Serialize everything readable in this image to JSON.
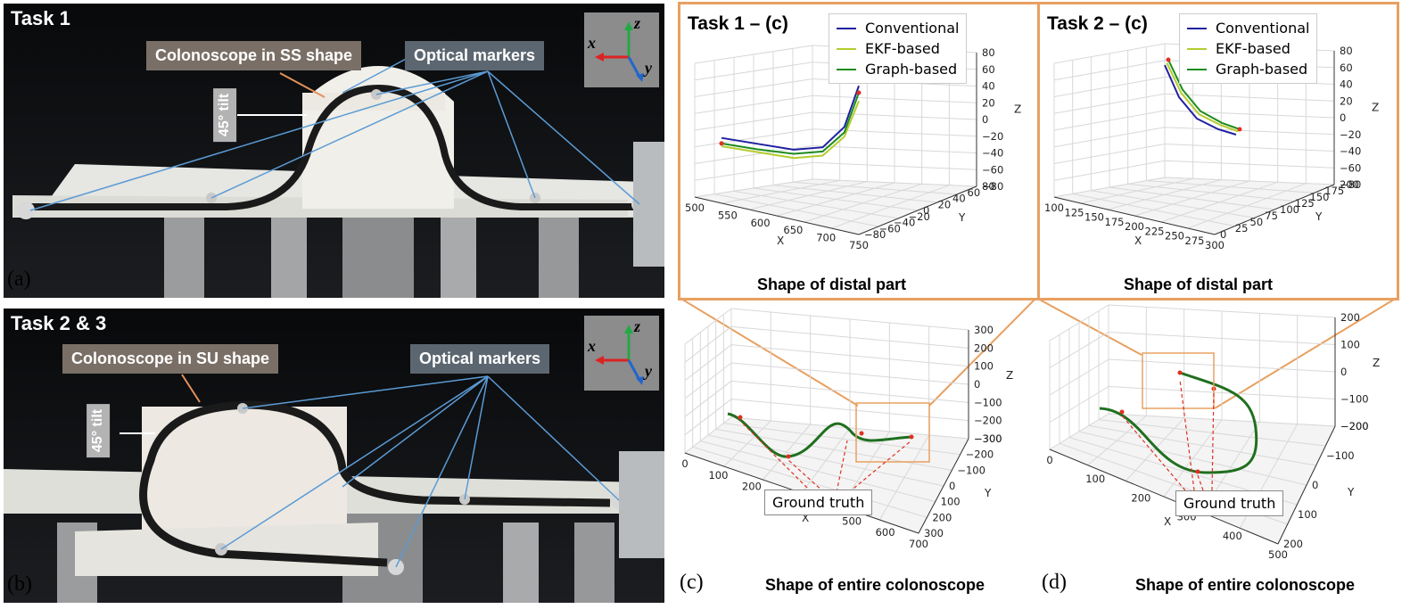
{
  "panels": {
    "a": {
      "label": "(a)",
      "title": "Task 1",
      "scope_callout": "Colonoscope in SS shape",
      "markers_callout": "Optical markers",
      "tilt": "45° tilt",
      "axes": {
        "x": "x",
        "y": "y",
        "z": "z"
      }
    },
    "b": {
      "label": "(b)",
      "title": "Task 2 & 3",
      "scope_callout": "Colonoscope in SU shape",
      "markers_callout": "Optical markers",
      "tilt": "45° tilt",
      "axes": {
        "x": "x",
        "y": "y",
        "z": "z"
      }
    },
    "c": {
      "label": "(c)",
      "caption": "Shape of entire colonoscope",
      "zoom_title": "Task 1 – (c)",
      "zoom_caption": "Shape of distal part",
      "ground_truth": "Ground truth"
    },
    "d": {
      "label": "(d)",
      "caption": "Shape of entire colonoscope",
      "zoom_title": "Task 2 – (c)",
      "zoom_caption": "Shape of distal part",
      "ground_truth": "Ground truth"
    }
  },
  "legend": [
    {
      "name": "Conventional",
      "color": "#1f1fa0"
    },
    {
      "name": "EKF-based",
      "color": "#b5cc2e"
    },
    {
      "name": "Graph-based",
      "color": "#1e8c1e"
    }
  ],
  "colors": {
    "zoom_border": "#e8a060",
    "ground_truth_marker": "#e03020",
    "entire_curve": "#1f6f1f"
  },
  "chart_data": [
    {
      "id": "task1-distal",
      "type": "line",
      "title": "Task 1 – (c)",
      "caption": "Shape of distal part",
      "xlabel": "X",
      "ylabel": "Y",
      "zlabel": "Z",
      "x_ticks": [
        "500",
        "550",
        "600",
        "650",
        "700",
        "750"
      ],
      "y_ticks": [
        "−80",
        "−60",
        "−40",
        "−20",
        "0",
        "20",
        "40",
        "60",
        "80"
      ],
      "z_ticks": [
        "80",
        "60",
        "40",
        "20",
        "0",
        "−20",
        "−40",
        "−60",
        "−80"
      ],
      "series": [
        {
          "name": "Conventional",
          "x": [
            510,
            560,
            610,
            650,
            680,
            700
          ],
          "z": [
            -14,
            -18,
            -22,
            -20,
            -5,
            25
          ]
        },
        {
          "name": "EKF-based",
          "x": [
            510,
            560,
            610,
            650,
            680,
            700
          ],
          "z": [
            -20,
            -24,
            -28,
            -26,
            -12,
            14
          ]
        },
        {
          "name": "Graph-based",
          "x": [
            510,
            560,
            610,
            650,
            680,
            700
          ],
          "z": [
            -18,
            -22,
            -25,
            -23,
            -9,
            20
          ]
        }
      ]
    },
    {
      "id": "task2-distal",
      "type": "line",
      "title": "Task 2 – (c)",
      "caption": "Shape of distal part",
      "xlabel": "X",
      "ylabel": "Y",
      "zlabel": "Z",
      "x_ticks": [
        "100",
        "125",
        "150",
        "175",
        "200",
        "225",
        "250",
        "275",
        "300"
      ],
      "y_ticks": [
        "0",
        "25",
        "50",
        "75",
        "100",
        "125",
        "150",
        "175",
        "200"
      ],
      "z_ticks": [
        "80",
        "60",
        "40",
        "20",
        "0",
        "−20",
        "−40",
        "−60",
        "−80"
      ],
      "series": [
        {
          "name": "Conventional",
          "x": [
            165,
            185,
            210,
            240,
            265
          ],
          "z": [
            35,
            5,
            -15,
            -25,
            -30
          ]
        },
        {
          "name": "EKF-based",
          "x": [
            168,
            188,
            213,
            243,
            268
          ],
          "z": [
            37,
            9,
            -11,
            -21,
            -27
          ]
        },
        {
          "name": "Graph-based",
          "x": [
            170,
            190,
            215,
            245,
            270
          ],
          "z": [
            40,
            12,
            -8,
            -19,
            -25
          ]
        }
      ]
    },
    {
      "id": "task1-entire",
      "type": "line",
      "caption": "Shape of entire colonoscope",
      "xlabel": "X",
      "ylabel": "Y",
      "zlabel": "Z",
      "x_ticks": [
        "0",
        "100",
        "200",
        "300",
        "400",
        "500",
        "600",
        "700"
      ],
      "y_ticks": [
        "300",
        "200",
        "100",
        "0",
        "−100",
        "−200",
        "−300"
      ],
      "z_ticks": [
        "300",
        "200",
        "100",
        "0",
        "−100",
        "−200",
        "−300"
      ]
    },
    {
      "id": "task2-entire",
      "type": "line",
      "caption": "Shape of entire colonoscope",
      "xlabel": "X",
      "ylabel": "Y",
      "zlabel": "Z",
      "x_ticks": [
        "0",
        "100",
        "200",
        "300",
        "400",
        "500"
      ],
      "y_ticks": [
        "200",
        "100",
        "0",
        "−100",
        "−200"
      ],
      "z_ticks": [
        "200",
        "100",
        "0",
        "−100",
        "−200"
      ]
    }
  ]
}
